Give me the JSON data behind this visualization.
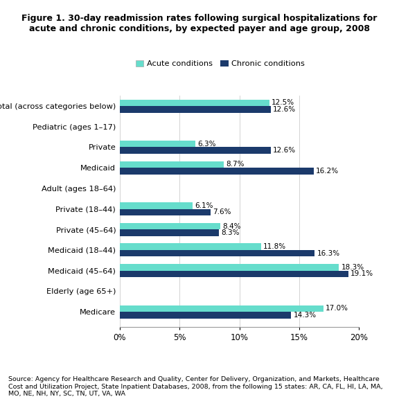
{
  "title": "Figure 1. 30-day readmission rates following surgical hospitalizations for\nacute and chronic conditions, by expected payer and age group, 2008",
  "source_text": "Source: Agency for Healthcare Research and Quality, Center for Delivery, Organization, and Markets, Healthcare\nCost and Utilization Project, State Inpatient Databases, 2008, from the following 15 states: AR, CA, FL, HI, LA, MA,\nMO, NE, NH, NY, SC, TN, UT, VA, WA",
  "legend_acute": "Acute conditions",
  "legend_chronic": "Chronic conditions",
  "acute_color": "#66DDCC",
  "chronic_color": "#1B3A6B",
  "categories": [
    "Total (across categories below)",
    "Pediatric (ages 1–17)",
    "Private",
    "Medicaid",
    "Adult (ages 18–64)",
    "Private (18–44)",
    "Private (45–64)",
    "Medicaid (18–44)",
    "Medicaid (45–64)",
    "Elderly (age 65+)",
    "Medicare"
  ],
  "acute_values": [
    12.5,
    null,
    6.3,
    8.7,
    null,
    6.1,
    8.4,
    11.8,
    18.3,
    null,
    17.0
  ],
  "chronic_values": [
    12.6,
    null,
    12.6,
    16.2,
    null,
    7.6,
    8.3,
    16.3,
    19.1,
    null,
    14.3
  ],
  "acute_labels": [
    "12.5%",
    "",
    "6.3%",
    "8.7%",
    "",
    "6.1%",
    "8.4%",
    "11.8%",
    "18.3%",
    "",
    "17.0%"
  ],
  "chronic_labels": [
    "12.6%",
    "",
    "12.6%",
    "16.2%",
    "",
    "7.6%",
    "8.3%",
    "16.3%",
    "19.1%",
    "",
    "14.3%"
  ],
  "xlim": [
    0,
    20
  ],
  "xticks": [
    0,
    5,
    10,
    15,
    20
  ],
  "xticklabels": [
    "0%",
    "5%",
    "10%",
    "15%",
    "20%"
  ],
  "header_indices": [
    1,
    4,
    9
  ],
  "bar_height": 0.32,
  "figsize": [
    5.76,
    5.76
  ],
  "dpi": 100
}
